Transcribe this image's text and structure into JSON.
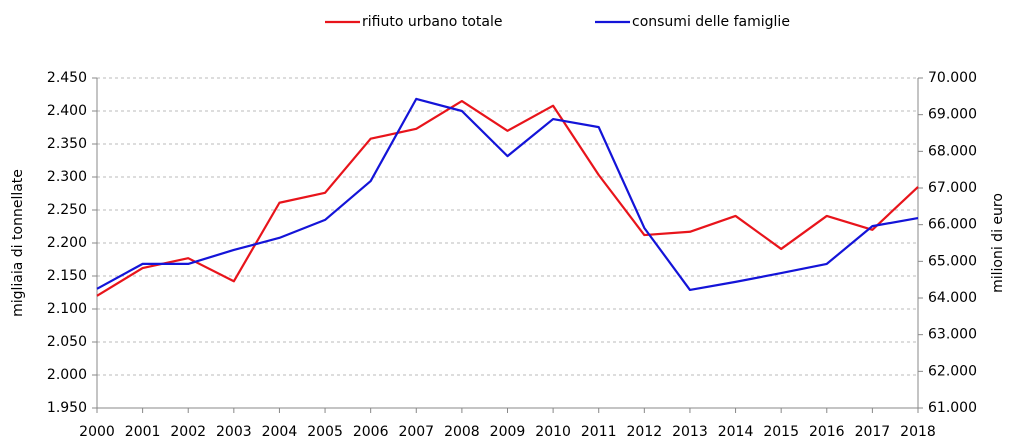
{
  "chart_data": {
    "type": "line",
    "categories": [
      "2000",
      "2001",
      "2002",
      "2003",
      "2004",
      "2005",
      "2006",
      "2007",
      "2008",
      "2009",
      "2010",
      "2011",
      "2012",
      "2013",
      "2014",
      "2015",
      "2016",
      "2017",
      "2018"
    ],
    "series": [
      {
        "name": "rifiuto urbano totale",
        "color": "#e8141b",
        "values": [
          2120,
          2162,
          2177,
          2142,
          2261,
          2276,
          2358,
          2373,
          2415,
          2370,
          2408,
          2303,
          2212,
          2217,
          2241,
          2191,
          2241,
          2220,
          2285
        ]
      },
      {
        "name": "consumi delle famiglie",
        "color": "#1414d8",
        "axis": "y2",
        "values": [
          64250,
          64930,
          64930,
          65310,
          65640,
          66130,
          67190,
          69430,
          69100,
          67870,
          68880,
          68660,
          65910,
          64220,
          64440,
          64680,
          64930,
          65960,
          66180
        ]
      }
    ],
    "ylabel": "migliaia di tonnellate",
    "y2label": "milioni di euro",
    "ylim": [
      1950,
      2450
    ],
    "yticks": [
      {
        "value": 1950,
        "label": "1.950"
      },
      {
        "value": 2000,
        "label": "2.000"
      },
      {
        "value": 2050,
        "label": "2.050"
      },
      {
        "value": 2100,
        "label": "2.100"
      },
      {
        "value": 2150,
        "label": "2.150"
      },
      {
        "value": 2200,
        "label": "2.200"
      },
      {
        "value": 2250,
        "label": "2.250"
      },
      {
        "value": 2300,
        "label": "2.300"
      },
      {
        "value": 2350,
        "label": "2.350"
      },
      {
        "value": 2400,
        "label": "2.400"
      },
      {
        "value": 2450,
        "label": "2.450"
      }
    ],
    "y2lim": [
      61000,
      70000
    ],
    "y2ticks": [
      {
        "value": 61000,
        "label": "61.000"
      },
      {
        "value": 62000,
        "label": "62.000"
      },
      {
        "value": 63000,
        "label": "63.000"
      },
      {
        "value": 64000,
        "label": "64.000"
      },
      {
        "value": 65000,
        "label": "65.000"
      },
      {
        "value": 66000,
        "label": "66.000"
      },
      {
        "value": 67000,
        "label": "67.000"
      },
      {
        "value": 68000,
        "label": "68.000"
      },
      {
        "value": 69000,
        "label": "69.000"
      },
      {
        "value": 70000,
        "label": "70.000"
      }
    ],
    "grid": true,
    "legend": "top"
  }
}
